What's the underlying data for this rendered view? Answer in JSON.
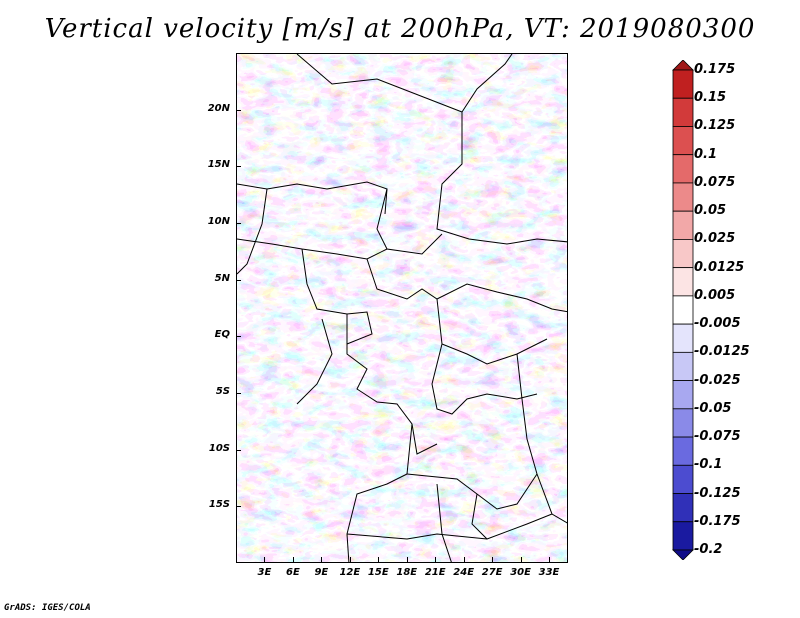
{
  "title": "Vertical velocity [m/s] at 200hPa, VT: 2019080300",
  "credit": "GrADS: IGES/COLA",
  "map": {
    "projection": "latlon",
    "lon_range": [
      0,
      35
    ],
    "lat_range": [
      -20,
      25
    ],
    "lat_labels": [
      {
        "text": "20N",
        "lat": 20
      },
      {
        "text": "15N",
        "lat": 15
      },
      {
        "text": "10N",
        "lat": 10
      },
      {
        "text": "5N",
        "lat": 5
      },
      {
        "text": "EQ",
        "lat": 0
      },
      {
        "text": "5S",
        "lat": -5
      },
      {
        "text": "10S",
        "lat": -10
      },
      {
        "text": "15S",
        "lat": -15
      }
    ],
    "lon_labels": [
      {
        "text": "3E",
        "lon": 3
      },
      {
        "text": "6E",
        "lon": 6
      },
      {
        "text": "9E",
        "lon": 9
      },
      {
        "text": "12E",
        "lon": 12
      },
      {
        "text": "15E",
        "lon": 15
      },
      {
        "text": "18E",
        "lon": 18
      },
      {
        "text": "21E",
        "lon": 21
      },
      {
        "text": "24E",
        "lon": 24
      },
      {
        "text": "27E",
        "lon": 27
      },
      {
        "text": "30E",
        "lon": 30
      },
      {
        "text": "33E",
        "lon": 33
      }
    ]
  },
  "colorbar": {
    "levels": [
      "0.175",
      "0.15",
      "0.125",
      "0.1",
      "0.075",
      "0.05",
      "0.025",
      "0.0125",
      "0.005",
      "-0.005",
      "-0.0125",
      "-0.025",
      "-0.05",
      "-0.075",
      "-0.1",
      "-0.125",
      "-0.175",
      "-0.2"
    ],
    "colors": [
      "#a01818",
      "#c02020",
      "#d23a3a",
      "#dc5050",
      "#e46a6a",
      "#ec8a8a",
      "#f2a8a8",
      "#f8c8c8",
      "#fce4e4",
      "#ffffff",
      "#e4e4fc",
      "#c8c8f6",
      "#a8a8f0",
      "#8a8ae8",
      "#6a6ae0",
      "#4c4cd0",
      "#3030b8",
      "#1a1aa0",
      "#100c88"
    ]
  }
}
